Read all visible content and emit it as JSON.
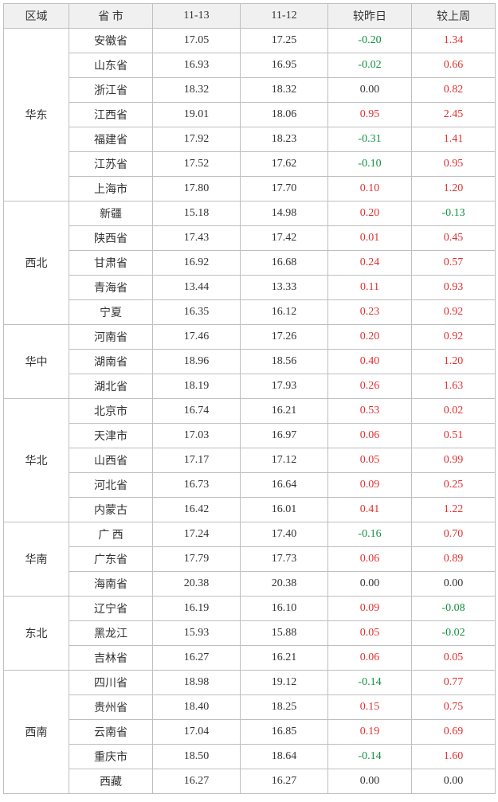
{
  "columns": {
    "region": "区域",
    "province": "省 市",
    "d1": "11-13",
    "d2": "11-12",
    "chg_day": "较昨日",
    "chg_week": "较上周"
  },
  "colors": {
    "positive": "#e03030",
    "negative": "#109040",
    "neutral": "#333333",
    "border": "#bfbfbf",
    "header_bg": "#f0f0f0",
    "bg": "#ffffff"
  },
  "groups": [
    {
      "region": "华东",
      "rows": [
        {
          "prov": "安徽省",
          "d1": "17.05",
          "d2": "17.25",
          "chg_day": "-0.20",
          "chg_week": "1.34"
        },
        {
          "prov": "山东省",
          "d1": "16.93",
          "d2": "16.95",
          "chg_day": "-0.02",
          "chg_week": "0.66"
        },
        {
          "prov": "浙江省",
          "d1": "18.32",
          "d2": "18.32",
          "chg_day": "0.00",
          "chg_week": "0.82"
        },
        {
          "prov": "江西省",
          "d1": "19.01",
          "d2": "18.06",
          "chg_day": "0.95",
          "chg_week": "2.45"
        },
        {
          "prov": "福建省",
          "d1": "17.92",
          "d2": "18.23",
          "chg_day": "-0.31",
          "chg_week": "1.41"
        },
        {
          "prov": "江苏省",
          "d1": "17.52",
          "d2": "17.62",
          "chg_day": "-0.10",
          "chg_week": "0.95"
        },
        {
          "prov": "上海市",
          "d1": "17.80",
          "d2": "17.70",
          "chg_day": "0.10",
          "chg_week": "1.20"
        }
      ]
    },
    {
      "region": "西北",
      "rows": [
        {
          "prov": "新疆",
          "d1": "15.18",
          "d2": "14.98",
          "chg_day": "0.20",
          "chg_week": "-0.13"
        },
        {
          "prov": "陕西省",
          "d1": "17.43",
          "d2": "17.42",
          "chg_day": "0.01",
          "chg_week": "0.45"
        },
        {
          "prov": "甘肃省",
          "d1": "16.92",
          "d2": "16.68",
          "chg_day": "0.24",
          "chg_week": "0.57"
        },
        {
          "prov": "青海省",
          "d1": "13.44",
          "d2": "13.33",
          "chg_day": "0.11",
          "chg_week": "0.93"
        },
        {
          "prov": "宁夏",
          "d1": "16.35",
          "d2": "16.12",
          "chg_day": "0.23",
          "chg_week": "0.92"
        }
      ]
    },
    {
      "region": "华中",
      "rows": [
        {
          "prov": "河南省",
          "d1": "17.46",
          "d2": "17.26",
          "chg_day": "0.20",
          "chg_week": "0.92"
        },
        {
          "prov": "湖南省",
          "d1": "18.96",
          "d2": "18.56",
          "chg_day": "0.40",
          "chg_week": "1.20"
        },
        {
          "prov": "湖北省",
          "d1": "18.19",
          "d2": "17.93",
          "chg_day": "0.26",
          "chg_week": "1.63"
        }
      ]
    },
    {
      "region": "华北",
      "rows": [
        {
          "prov": "北京市",
          "d1": "16.74",
          "d2": "16.21",
          "chg_day": "0.53",
          "chg_week": "0.02"
        },
        {
          "prov": "天津市",
          "d1": "17.03",
          "d2": "16.97",
          "chg_day": "0.06",
          "chg_week": "0.51"
        },
        {
          "prov": "山西省",
          "d1": "17.17",
          "d2": "17.12",
          "chg_day": "0.05",
          "chg_week": "0.99"
        },
        {
          "prov": "河北省",
          "d1": "16.73",
          "d2": "16.64",
          "chg_day": "0.09",
          "chg_week": "0.25"
        },
        {
          "prov": "内蒙古",
          "d1": "16.42",
          "d2": "16.01",
          "chg_day": "0.41",
          "chg_week": "1.22"
        }
      ]
    },
    {
      "region": "华南",
      "rows": [
        {
          "prov": "广 西",
          "d1": "17.24",
          "d2": "17.40",
          "chg_day": "-0.16",
          "chg_week": "0.70"
        },
        {
          "prov": "广东省",
          "d1": "17.79",
          "d2": "17.73",
          "chg_day": "0.06",
          "chg_week": "0.89"
        },
        {
          "prov": "海南省",
          "d1": "20.38",
          "d2": "20.38",
          "chg_day": "0.00",
          "chg_week": "0.00"
        }
      ]
    },
    {
      "region": "东北",
      "rows": [
        {
          "prov": "辽宁省",
          "d1": "16.19",
          "d2": "16.10",
          "chg_day": "0.09",
          "chg_week": "-0.08"
        },
        {
          "prov": "黑龙江",
          "d1": "15.93",
          "d2": "15.88",
          "chg_day": "0.05",
          "chg_week": "-0.02"
        },
        {
          "prov": "吉林省",
          "d1": "16.27",
          "d2": "16.21",
          "chg_day": "0.06",
          "chg_week": "0.05"
        }
      ]
    },
    {
      "region": "西南",
      "rows": [
        {
          "prov": "四川省",
          "d1": "18.98",
          "d2": "19.12",
          "chg_day": "-0.14",
          "chg_week": "0.77"
        },
        {
          "prov": "贵州省",
          "d1": "18.40",
          "d2": "18.25",
          "chg_day": "0.15",
          "chg_week": "0.75"
        },
        {
          "prov": "云南省",
          "d1": "17.04",
          "d2": "16.85",
          "chg_day": "0.19",
          "chg_week": "0.69"
        },
        {
          "prov": "重庆市",
          "d1": "18.50",
          "d2": "18.64",
          "chg_day": "-0.14",
          "chg_week": "1.60"
        },
        {
          "prov": "西藏",
          "d1": "16.27",
          "d2": "16.27",
          "chg_day": "0.00",
          "chg_week": "0.00"
        }
      ]
    }
  ]
}
